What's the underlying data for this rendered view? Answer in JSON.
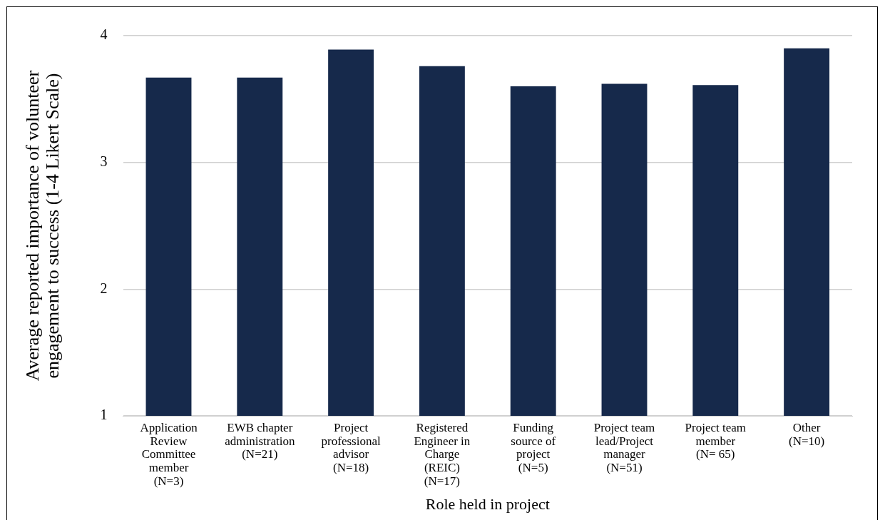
{
  "chart_data": {
    "type": "bar",
    "xlabel": "Role held in project",
    "ylabel": "Average reported importance of volunteer\nengagement to success (1-4 Likert Scale)",
    "categories": [
      "Application\nReview\nCommittee\nmember\n(N=3)",
      "EWB chapter\nadministration\n(N=21)",
      "Project\nprofessional\nadvisor\n(N=18)",
      "Registered\nEngineer in\nCharge\n(REIC)\n(N=17)",
      "Funding\nsource of\nproject\n(N=5)",
      "Project team\nlead/Project\nmanager\n(N=51)",
      "Project team\nmember\n(N= 65)",
      "Other\n(N=10)"
    ],
    "values": [
      3.67,
      3.67,
      3.89,
      3.76,
      3.6,
      3.62,
      3.61,
      3.9
    ],
    "color": "#16294b",
    "ylim": [
      1,
      4
    ],
    "yticks": [
      1,
      2,
      3,
      4
    ],
    "grid": "y",
    "legend": false
  }
}
